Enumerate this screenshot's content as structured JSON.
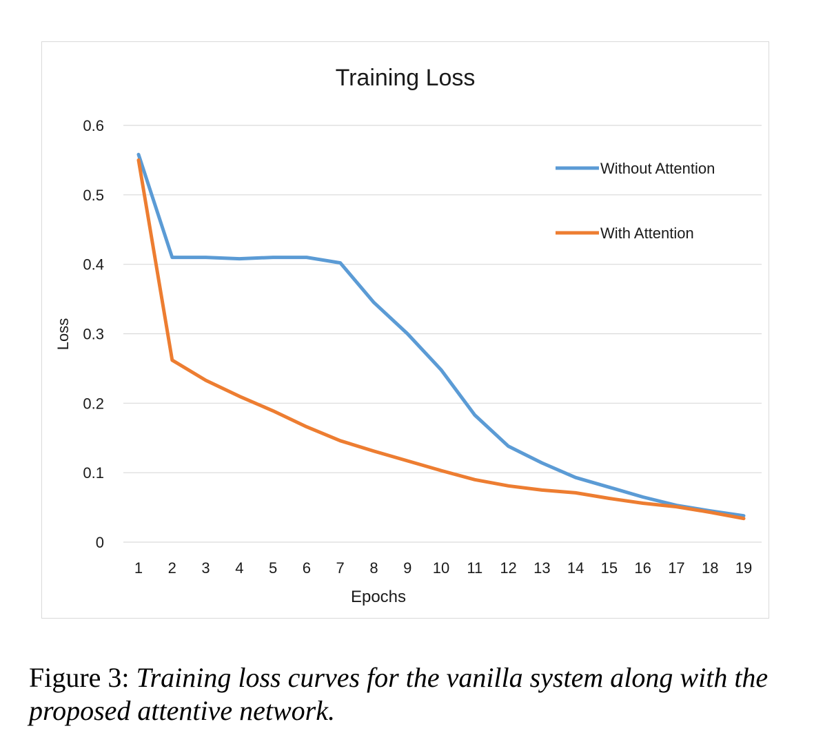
{
  "chart_data": {
    "type": "line",
    "title": "Training Loss",
    "xlabel": "Epochs",
    "ylabel": "Loss",
    "x": [
      1,
      2,
      3,
      4,
      5,
      6,
      7,
      8,
      9,
      10,
      11,
      12,
      13,
      14,
      15,
      16,
      17,
      18,
      19
    ],
    "ylim": [
      0,
      0.6
    ],
    "yticks": [
      "0",
      "0.1",
      "0.2",
      "0.3",
      "0.4",
      "0.5",
      "0.6"
    ],
    "grid": true,
    "legend_position": "top-right",
    "series": [
      {
        "name": "Without Attention",
        "color": "#5b9bd5",
        "values": [
          0.558,
          0.41,
          0.41,
          0.408,
          0.41,
          0.41,
          0.402,
          0.345,
          0.3,
          0.248,
          0.183,
          0.138,
          0.114,
          0.093,
          0.079,
          0.065,
          0.053,
          0.045,
          0.038
        ]
      },
      {
        "name": "With Attention",
        "color": "#ed7d31",
        "values": [
          0.55,
          0.262,
          0.233,
          0.21,
          0.189,
          0.166,
          0.146,
          0.131,
          0.117,
          0.103,
          0.09,
          0.081,
          0.075,
          0.071,
          0.063,
          0.056,
          0.051,
          0.043,
          0.034
        ]
      }
    ]
  },
  "caption": {
    "label": "Figure 3:",
    "text": "Training loss curves for the vanilla system along with the proposed attentive network."
  }
}
